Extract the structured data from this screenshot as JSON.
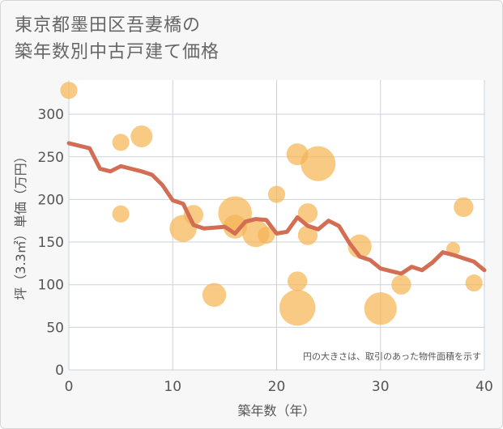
{
  "chart_data": {
    "type": "scatter+line",
    "title_line1": "東京都墨田区吾妻橋の",
    "title_line2": "築年数別中古戸建て価格",
    "xlabel": "築年数（年）",
    "ylabel": "坪（3.3㎡）単価（万円）",
    "note": "円の大きさは、取引のあった物件面積を示す",
    "xlim": [
      0,
      40
    ],
    "ylim": [
      0,
      340
    ],
    "x_ticks": [
      0,
      10,
      20,
      30,
      40
    ],
    "y_ticks": [
      0,
      50,
      100,
      150,
      200,
      250,
      300
    ],
    "colors": {
      "bubble": "#f5b555",
      "line": "#d36e55",
      "grid": "#c9d3dd",
      "plot_bg": "#ffffff"
    },
    "bubbles": [
      {
        "x": 0,
        "y": 328,
        "size": 2
      },
      {
        "x": 5,
        "y": 267,
        "size": 2
      },
      {
        "x": 5,
        "y": 183,
        "size": 2
      },
      {
        "x": 7,
        "y": 274,
        "size": 4
      },
      {
        "x": 11,
        "y": 166,
        "size": 7
      },
      {
        "x": 12,
        "y": 182,
        "size": 3
      },
      {
        "x": 14,
        "y": 88,
        "size": 5
      },
      {
        "x": 16,
        "y": 184,
        "size": 12
      },
      {
        "x": 16,
        "y": 168,
        "size": 5
      },
      {
        "x": 18,
        "y": 160,
        "size": 7
      },
      {
        "x": 19,
        "y": 158,
        "size": 2
      },
      {
        "x": 20,
        "y": 206,
        "size": 2
      },
      {
        "x": 22,
        "y": 253,
        "size": 4
      },
      {
        "x": 22,
        "y": 104,
        "size": 3
      },
      {
        "x": 22,
        "y": 73,
        "size": 14
      },
      {
        "x": 23,
        "y": 184,
        "size": 3
      },
      {
        "x": 23,
        "y": 158,
        "size": 3
      },
      {
        "x": 24,
        "y": 242,
        "size": 13
      },
      {
        "x": 28,
        "y": 145,
        "size": 5
      },
      {
        "x": 30,
        "y": 72,
        "size": 11
      },
      {
        "x": 32,
        "y": 100,
        "size": 3
      },
      {
        "x": 37,
        "y": 142,
        "size": 1
      },
      {
        "x": 38,
        "y": 191,
        "size": 3
      },
      {
        "x": 39,
        "y": 102,
        "size": 2
      }
    ],
    "trend_line": {
      "x": [
        0,
        1,
        2,
        3,
        4,
        5,
        6,
        7,
        8,
        9,
        10,
        11,
        12,
        13,
        14,
        15,
        16,
        17,
        18,
        19,
        20,
        21,
        22,
        23,
        24,
        25,
        26,
        27,
        28,
        29,
        30,
        31,
        32,
        33,
        34,
        35,
        36,
        37,
        38,
        39,
        40
      ],
      "y": [
        266,
        263,
        260,
        236,
        233,
        239,
        236,
        233,
        229,
        217,
        199,
        195,
        170,
        166,
        167,
        168,
        160,
        174,
        177,
        176,
        160,
        162,
        179,
        169,
        165,
        175,
        169,
        149,
        133,
        129,
        119,
        116,
        113,
        121,
        117,
        126,
        138,
        135,
        131,
        127,
        117
      ]
    }
  }
}
